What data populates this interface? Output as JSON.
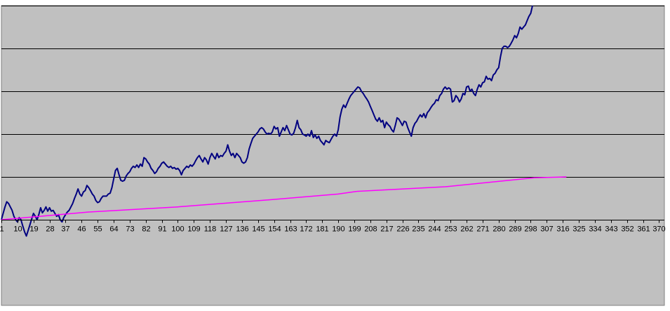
{
  "chart_data": {
    "type": "line",
    "title": "",
    "xlabel": "",
    "ylabel": "",
    "x_tick_labels": [
      "1",
      "10",
      "19",
      "28",
      "37",
      "46",
      "55",
      "64",
      "73",
      "82",
      "91",
      "100",
      "109",
      "118",
      "127",
      "136",
      "145",
      "154",
      "163",
      "172",
      "181",
      "190",
      "199",
      "208",
      "217",
      "226",
      "235",
      "244",
      "253",
      "262",
      "271",
      "280",
      "289",
      "298",
      "307",
      "316",
      "325",
      "334",
      "343",
      "352",
      "361",
      "370"
    ],
    "x_range": [
      1,
      373
    ],
    "ylim": [
      -1,
      5
    ],
    "y_gridlines": [
      0,
      1,
      2,
      3,
      4,
      5
    ],
    "grid": true,
    "legend": "none",
    "plot_background": "#c0c0c0",
    "series": [
      {
        "color": "#000080",
        "points": [
          [
            1,
            0.0
          ],
          [
            2,
            0.15
          ],
          [
            3,
            0.3
          ],
          [
            4,
            0.42
          ],
          [
            5,
            0.38
          ],
          [
            6,
            0.3
          ],
          [
            7,
            0.22
          ],
          [
            8,
            0.08
          ],
          [
            9,
            0.0
          ],
          [
            10,
            -0.05
          ],
          [
            11,
            0.05
          ],
          [
            12,
            0.0
          ],
          [
            13,
            -0.15
          ],
          [
            14,
            -0.28
          ],
          [
            15,
            -0.38
          ],
          [
            16,
            -0.25
          ],
          [
            17,
            -0.12
          ],
          [
            18,
            0.02
          ],
          [
            19,
            0.15
          ],
          [
            20,
            0.08
          ],
          [
            21,
            0.0
          ],
          [
            22,
            0.12
          ],
          [
            23,
            0.28
          ],
          [
            24,
            0.16
          ],
          [
            25,
            0.22
          ],
          [
            26,
            0.3
          ],
          [
            27,
            0.2
          ],
          [
            28,
            0.28
          ],
          [
            29,
            0.2
          ],
          [
            30,
            0.22
          ],
          [
            31,
            0.15
          ],
          [
            32,
            0.08
          ],
          [
            33,
            0.12
          ],
          [
            34,
            0.0
          ],
          [
            35,
            -0.05
          ],
          [
            36,
            0.05
          ],
          [
            37,
            0.12
          ],
          [
            38,
            0.18
          ],
          [
            39,
            0.22
          ],
          [
            40,
            0.3
          ],
          [
            41,
            0.38
          ],
          [
            42,
            0.5
          ],
          [
            43,
            0.6
          ],
          [
            44,
            0.72
          ],
          [
            45,
            0.6
          ],
          [
            46,
            0.55
          ],
          [
            47,
            0.65
          ],
          [
            48,
            0.68
          ],
          [
            49,
            0.8
          ],
          [
            50,
            0.75
          ],
          [
            51,
            0.68
          ],
          [
            52,
            0.6
          ],
          [
            53,
            0.55
          ],
          [
            54,
            0.45
          ],
          [
            55,
            0.4
          ],
          [
            56,
            0.42
          ],
          [
            57,
            0.5
          ],
          [
            58,
            0.55
          ],
          [
            59,
            0.55
          ],
          [
            60,
            0.55
          ],
          [
            61,
            0.6
          ],
          [
            62,
            0.62
          ],
          [
            63,
            0.75
          ],
          [
            64,
            0.95
          ],
          [
            65,
            1.15
          ],
          [
            66,
            1.2
          ],
          [
            67,
            1.05
          ],
          [
            68,
            0.92
          ],
          [
            69,
            0.9
          ],
          [
            70,
            0.92
          ],
          [
            71,
            1.02
          ],
          [
            72,
            1.08
          ],
          [
            73,
            1.12
          ],
          [
            74,
            1.2
          ],
          [
            75,
            1.25
          ],
          [
            76,
            1.22
          ],
          [
            77,
            1.28
          ],
          [
            78,
            1.22
          ],
          [
            79,
            1.3
          ],
          [
            80,
            1.25
          ],
          [
            81,
            1.45
          ],
          [
            82,
            1.42
          ],
          [
            83,
            1.35
          ],
          [
            84,
            1.3
          ],
          [
            85,
            1.2
          ],
          [
            86,
            1.15
          ],
          [
            87,
            1.08
          ],
          [
            88,
            1.12
          ],
          [
            89,
            1.2
          ],
          [
            90,
            1.25
          ],
          [
            91,
            1.32
          ],
          [
            92,
            1.35
          ],
          [
            93,
            1.3
          ],
          [
            94,
            1.25
          ],
          [
            95,
            1.22
          ],
          [
            96,
            1.25
          ],
          [
            97,
            1.2
          ],
          [
            98,
            1.22
          ],
          [
            99,
            1.18
          ],
          [
            100,
            1.2
          ],
          [
            101,
            1.15
          ],
          [
            102,
            1.05
          ],
          [
            103,
            1.15
          ],
          [
            104,
            1.2
          ],
          [
            105,
            1.25
          ],
          [
            106,
            1.22
          ],
          [
            107,
            1.28
          ],
          [
            108,
            1.25
          ],
          [
            109,
            1.3
          ],
          [
            110,
            1.38
          ],
          [
            111,
            1.45
          ],
          [
            112,
            1.5
          ],
          [
            113,
            1.42
          ],
          [
            114,
            1.35
          ],
          [
            115,
            1.45
          ],
          [
            116,
            1.4
          ],
          [
            117,
            1.3
          ],
          [
            118,
            1.45
          ],
          [
            119,
            1.55
          ],
          [
            120,
            1.48
          ],
          [
            121,
            1.42
          ],
          [
            122,
            1.55
          ],
          [
            123,
            1.45
          ],
          [
            124,
            1.5
          ],
          [
            125,
            1.48
          ],
          [
            126,
            1.55
          ],
          [
            127,
            1.6
          ],
          [
            128,
            1.75
          ],
          [
            129,
            1.6
          ],
          [
            130,
            1.5
          ],
          [
            131,
            1.55
          ],
          [
            132,
            1.45
          ],
          [
            133,
            1.55
          ],
          [
            134,
            1.5
          ],
          [
            135,
            1.45
          ],
          [
            136,
            1.35
          ],
          [
            137,
            1.32
          ],
          [
            138,
            1.35
          ],
          [
            139,
            1.45
          ],
          [
            140,
            1.65
          ],
          [
            141,
            1.78
          ],
          [
            142,
            1.9
          ],
          [
            143,
            1.95
          ],
          [
            144,
            2.0
          ],
          [
            145,
            2.05
          ],
          [
            146,
            2.12
          ],
          [
            147,
            2.15
          ],
          [
            148,
            2.12
          ],
          [
            149,
            2.05
          ],
          [
            150,
            2.0
          ],
          [
            151,
            2.02
          ],
          [
            152,
            2.0
          ],
          [
            153,
            2.05
          ],
          [
            154,
            2.18
          ],
          [
            155,
            2.12
          ],
          [
            156,
            2.15
          ],
          [
            157,
            1.95
          ],
          [
            158,
            2.05
          ],
          [
            159,
            2.15
          ],
          [
            160,
            2.08
          ],
          [
            161,
            2.2
          ],
          [
            162,
            2.1
          ],
          [
            163,
            2.0
          ],
          [
            164,
            1.98
          ],
          [
            165,
            2.02
          ],
          [
            166,
            2.15
          ],
          [
            167,
            2.32
          ],
          [
            168,
            2.15
          ],
          [
            169,
            2.1
          ],
          [
            170,
            2.0
          ],
          [
            171,
            1.98
          ],
          [
            172,
            1.95
          ],
          [
            173,
            2.0
          ],
          [
            174,
            1.95
          ],
          [
            175,
            2.08
          ],
          [
            176,
            1.92
          ],
          [
            177,
            1.98
          ],
          [
            178,
            1.9
          ],
          [
            179,
            1.95
          ],
          [
            180,
            1.85
          ],
          [
            181,
            1.8
          ],
          [
            182,
            1.75
          ],
          [
            183,
            1.85
          ],
          [
            184,
            1.82
          ],
          [
            185,
            1.8
          ],
          [
            186,
            1.88
          ],
          [
            187,
            1.95
          ],
          [
            188,
            2.0
          ],
          [
            189,
            1.95
          ],
          [
            190,
            2.1
          ],
          [
            191,
            2.4
          ],
          [
            192,
            2.58
          ],
          [
            193,
            2.68
          ],
          [
            194,
            2.62
          ],
          [
            195,
            2.72
          ],
          [
            196,
            2.82
          ],
          [
            197,
            2.9
          ],
          [
            198,
            2.95
          ],
          [
            199,
            3.0
          ],
          [
            200,
            3.05
          ],
          [
            201,
            3.1
          ],
          [
            202,
            3.08
          ],
          [
            203,
            3.0
          ],
          [
            204,
            2.95
          ],
          [
            205,
            2.88
          ],
          [
            206,
            2.82
          ],
          [
            207,
            2.75
          ],
          [
            208,
            2.65
          ],
          [
            209,
            2.55
          ],
          [
            210,
            2.45
          ],
          [
            211,
            2.35
          ],
          [
            212,
            2.3
          ],
          [
            213,
            2.38
          ],
          [
            214,
            2.28
          ],
          [
            215,
            2.32
          ],
          [
            216,
            2.15
          ],
          [
            217,
            2.28
          ],
          [
            218,
            2.22
          ],
          [
            219,
            2.18
          ],
          [
            220,
            2.1
          ],
          [
            221,
            2.05
          ],
          [
            222,
            2.2
          ],
          [
            223,
            2.38
          ],
          [
            224,
            2.35
          ],
          [
            225,
            2.28
          ],
          [
            226,
            2.2
          ],
          [
            227,
            2.3
          ],
          [
            228,
            2.28
          ],
          [
            229,
            2.15
          ],
          [
            230,
            2.05
          ],
          [
            231,
            1.95
          ],
          [
            232,
            2.15
          ],
          [
            233,
            2.25
          ],
          [
            234,
            2.3
          ],
          [
            235,
            2.38
          ],
          [
            236,
            2.45
          ],
          [
            237,
            2.4
          ],
          [
            238,
            2.48
          ],
          [
            239,
            2.38
          ],
          [
            240,
            2.5
          ],
          [
            241,
            2.55
          ],
          [
            242,
            2.62
          ],
          [
            243,
            2.68
          ],
          [
            244,
            2.72
          ],
          [
            245,
            2.8
          ],
          [
            246,
            2.78
          ],
          [
            247,
            2.9
          ],
          [
            248,
            2.95
          ],
          [
            249,
            3.05
          ],
          [
            250,
            3.1
          ],
          [
            251,
            3.05
          ],
          [
            252,
            3.08
          ],
          [
            253,
            3.05
          ],
          [
            254,
            2.75
          ],
          [
            255,
            2.78
          ],
          [
            256,
            2.9
          ],
          [
            257,
            2.85
          ],
          [
            258,
            2.75
          ],
          [
            259,
            2.82
          ],
          [
            260,
            2.95
          ],
          [
            261,
            2.92
          ],
          [
            262,
            3.1
          ],
          [
            263,
            3.12
          ],
          [
            264,
            3.0
          ],
          [
            265,
            3.05
          ],
          [
            266,
            2.95
          ],
          [
            267,
            2.9
          ],
          [
            268,
            3.05
          ],
          [
            269,
            3.15
          ],
          [
            270,
            3.1
          ],
          [
            271,
            3.2
          ],
          [
            272,
            3.22
          ],
          [
            273,
            3.35
          ],
          [
            274,
            3.28
          ],
          [
            275,
            3.3
          ],
          [
            276,
            3.25
          ],
          [
            277,
            3.38
          ],
          [
            278,
            3.42
          ],
          [
            279,
            3.5
          ],
          [
            280,
            3.55
          ],
          [
            281,
            3.8
          ],
          [
            282,
            4.0
          ],
          [
            283,
            4.05
          ],
          [
            284,
            4.05
          ],
          [
            285,
            4.02
          ],
          [
            286,
            4.05
          ],
          [
            287,
            4.12
          ],
          [
            288,
            4.2
          ],
          [
            289,
            4.3
          ],
          [
            290,
            4.25
          ],
          [
            291,
            4.35
          ],
          [
            292,
            4.5
          ],
          [
            293,
            4.45
          ],
          [
            294,
            4.5
          ],
          [
            295,
            4.55
          ],
          [
            296,
            4.65
          ],
          [
            297,
            4.75
          ],
          [
            298,
            4.82
          ],
          [
            299,
            5.0
          ]
        ]
      },
      {
        "color": "#ff00ff",
        "points": [
          [
            1,
            0.0
          ],
          [
            50,
            0.18
          ],
          [
            100,
            0.3
          ],
          [
            150,
            0.46
          ],
          [
            190,
            0.6
          ],
          [
            200,
            0.66
          ],
          [
            250,
            0.77
          ],
          [
            300,
            0.98
          ],
          [
            318,
            1.0
          ]
        ]
      }
    ]
  }
}
